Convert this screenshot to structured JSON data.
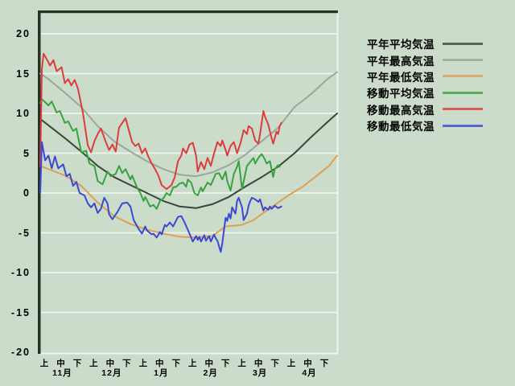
{
  "colors": {
    "background": "#cbdccb",
    "plot_border_dark": "#263226",
    "grid_line": "#f0f4f0",
    "label_text": "#000000"
  },
  "chart_data": {
    "type": "line",
    "grid": "horizontal-only",
    "legend_position": "right",
    "x_axis": {
      "jun_labels": [
        "上",
        "中",
        "下"
      ],
      "months": [
        {
          "label": "11月",
          "days": 30
        },
        {
          "label": "12月",
          "days": 31
        },
        {
          "label": "1月",
          "days": 31
        },
        {
          "label": "2月",
          "days": 28
        },
        {
          "label": "3月",
          "days": 31
        },
        {
          "label": "4月",
          "days": 30
        }
      ]
    },
    "y_axis": {
      "min": -20,
      "max": 20,
      "step": 5,
      "tick_labels": [
        "20",
        "15",
        "10",
        "5",
        "0",
        "-5",
        "-10",
        "-15",
        "-20"
      ],
      "tick_values": [
        20,
        15,
        10,
        5,
        0,
        -5,
        -10,
        -15,
        -20
      ]
    },
    "series": [
      {
        "id": "normal-avg",
        "name": "平年平均気温",
        "color": "#3a463a",
        "points": [
          [
            0,
            9.3
          ],
          [
            5,
            8.5
          ],
          [
            15,
            6.9
          ],
          [
            25,
            5.2
          ],
          [
            35,
            3.4
          ],
          [
            45,
            2.0
          ],
          [
            55,
            1.0
          ],
          [
            65,
            0.0
          ],
          [
            75,
            -1.0
          ],
          [
            85,
            -1.7
          ],
          [
            95,
            -1.9
          ],
          [
            105,
            -1.4
          ],
          [
            115,
            -0.5
          ],
          [
            125,
            0.8
          ],
          [
            135,
            2.0
          ],
          [
            145,
            3.3
          ],
          [
            155,
            5.0
          ],
          [
            165,
            7.0
          ],
          [
            175,
            8.9
          ],
          [
            181,
            10.0
          ]
        ]
      },
      {
        "id": "normal-max",
        "name": "平年最高気温",
        "color": "#9ca69c",
        "points": [
          [
            0,
            15.0
          ],
          [
            5,
            14.3
          ],
          [
            15,
            12.6
          ],
          [
            25,
            10.8
          ],
          [
            35,
            8.4
          ],
          [
            45,
            6.5
          ],
          [
            55,
            5.2
          ],
          [
            65,
            4.0
          ],
          [
            75,
            3.0
          ],
          [
            85,
            2.3
          ],
          [
            95,
            2.1
          ],
          [
            105,
            2.6
          ],
          [
            115,
            3.5
          ],
          [
            125,
            4.8
          ],
          [
            135,
            6.5
          ],
          [
            145,
            8.2
          ],
          [
            155,
            10.8
          ],
          [
            165,
            12.4
          ],
          [
            175,
            14.3
          ],
          [
            181,
            15.2
          ]
        ]
      },
      {
        "id": "normal-min",
        "name": "平年最低気温",
        "color": "#dda055",
        "points": [
          [
            0,
            3.4
          ],
          [
            5,
            3.0
          ],
          [
            15,
            2.2
          ],
          [
            25,
            0.9
          ],
          [
            35,
            -1.2
          ],
          [
            45,
            -2.9
          ],
          [
            55,
            -3.9
          ],
          [
            65,
            -4.6
          ],
          [
            75,
            -5.1
          ],
          [
            85,
            -5.5
          ],
          [
            95,
            -5.6
          ],
          [
            105,
            -5.4
          ],
          [
            113,
            -4.2
          ],
          [
            123,
            -4.0
          ],
          [
            130,
            -3.4
          ],
          [
            138,
            -2.2
          ],
          [
            145,
            -1.2
          ],
          [
            152,
            -0.2
          ],
          [
            160,
            0.8
          ],
          [
            170,
            2.4
          ],
          [
            176,
            3.4
          ],
          [
            181,
            4.7
          ]
        ]
      },
      {
        "id": "moving-avg",
        "name": "移動平均気温",
        "color": "#38a33e",
        "points": [
          [
            0,
            11.3
          ],
          [
            1,
            11.8
          ],
          [
            5,
            11.0
          ],
          [
            7,
            11.5
          ],
          [
            10,
            10.1
          ],
          [
            12,
            10.3
          ],
          [
            15,
            8.8
          ],
          [
            17,
            9.0
          ],
          [
            20,
            7.8
          ],
          [
            22,
            8.1
          ],
          [
            25,
            5.1
          ],
          [
            28,
            5.3
          ],
          [
            30,
            3.7
          ],
          [
            33,
            3.4
          ],
          [
            35,
            1.5
          ],
          [
            38,
            1.1
          ],
          [
            41,
            2.7
          ],
          [
            43,
            2.1
          ],
          [
            46,
            2.4
          ],
          [
            48,
            3.4
          ],
          [
            50,
            2.5
          ],
          [
            52,
            3.0
          ],
          [
            55,
            1.7
          ],
          [
            56,
            2.2
          ],
          [
            59,
            0.7
          ],
          [
            61,
            0.0
          ],
          [
            63,
            -1.0
          ],
          [
            64,
            -0.5
          ],
          [
            67,
            -1.7
          ],
          [
            69,
            -1.5
          ],
          [
            71,
            -2.0
          ],
          [
            73,
            -1.0
          ],
          [
            75,
            -0.7
          ],
          [
            77,
            0.0
          ],
          [
            79,
            -0.3
          ],
          [
            81,
            0.7
          ],
          [
            83,
            0.8
          ],
          [
            85,
            1.2
          ],
          [
            87,
            1.3
          ],
          [
            89,
            0.8
          ],
          [
            90,
            1.7
          ],
          [
            92,
            1.3
          ],
          [
            94,
            0.0
          ],
          [
            96,
            -0.3
          ],
          [
            98,
            0.7
          ],
          [
            99,
            0.2
          ],
          [
            102,
            1.3
          ],
          [
            104,
            1.0
          ],
          [
            107,
            2.4
          ],
          [
            109,
            2.5
          ],
          [
            111,
            1.7
          ],
          [
            113,
            2.7
          ],
          [
            114,
            1.5
          ],
          [
            116,
            0.3
          ],
          [
            118,
            2.4
          ],
          [
            120,
            3.3
          ],
          [
            121,
            4.0
          ],
          [
            123,
            0.5
          ],
          [
            125,
            2.4
          ],
          [
            126,
            3.4
          ],
          [
            128,
            3.9
          ],
          [
            130,
            4.4
          ],
          [
            131,
            3.7
          ],
          [
            133,
            4.4
          ],
          [
            135,
            4.9
          ],
          [
            137,
            4.2
          ],
          [
            138,
            3.7
          ],
          [
            140,
            4.0
          ],
          [
            142,
            2.0
          ],
          [
            143,
            3.0
          ],
          [
            145,
            3.5
          ],
          [
            146,
            3.3
          ]
        ]
      },
      {
        "id": "moving-max",
        "name": "移動最高気温",
        "color": "#dd3c3c",
        "points": [
          [
            0,
            3.3
          ],
          [
            1,
            15.5
          ],
          [
            2,
            17.5
          ],
          [
            4,
            16.8
          ],
          [
            6,
            16.0
          ],
          [
            8,
            16.7
          ],
          [
            10,
            15.3
          ],
          [
            13,
            15.8
          ],
          [
            15,
            13.8
          ],
          [
            17,
            14.3
          ],
          [
            19,
            13.5
          ],
          [
            21,
            14.2
          ],
          [
            23,
            13.1
          ],
          [
            26,
            10.1
          ],
          [
            29,
            6.0
          ],
          [
            31,
            5.1
          ],
          [
            33,
            6.5
          ],
          [
            35,
            7.4
          ],
          [
            37,
            8.1
          ],
          [
            40,
            6.4
          ],
          [
            42,
            5.4
          ],
          [
            44,
            6.1
          ],
          [
            46,
            5.2
          ],
          [
            48,
            8.2
          ],
          [
            52,
            9.4
          ],
          [
            54,
            7.9
          ],
          [
            56,
            6.4
          ],
          [
            58,
            5.9
          ],
          [
            60,
            6.2
          ],
          [
            62,
            5.0
          ],
          [
            64,
            5.6
          ],
          [
            66,
            4.5
          ],
          [
            68,
            3.7
          ],
          [
            70,
            3.0
          ],
          [
            72,
            2.2
          ],
          [
            74,
            1.0
          ],
          [
            77,
            0.5
          ],
          [
            80,
            1.0
          ],
          [
            82,
            2.0
          ],
          [
            84,
            4.0
          ],
          [
            86,
            4.7
          ],
          [
            87,
            5.6
          ],
          [
            89,
            5.0
          ],
          [
            91,
            6.1
          ],
          [
            93,
            6.3
          ],
          [
            95,
            4.7
          ],
          [
            96,
            2.7
          ],
          [
            98,
            3.9
          ],
          [
            100,
            3.0
          ],
          [
            102,
            4.4
          ],
          [
            104,
            3.4
          ],
          [
            106,
            5.0
          ],
          [
            108,
            6.4
          ],
          [
            110,
            5.9
          ],
          [
            111,
            6.6
          ],
          [
            113,
            5.4
          ],
          [
            114,
            4.7
          ],
          [
            116,
            5.9
          ],
          [
            118,
            6.4
          ],
          [
            120,
            5.0
          ],
          [
            122,
            6.2
          ],
          [
            124,
            7.9
          ],
          [
            126,
            7.4
          ],
          [
            127,
            8.4
          ],
          [
            129,
            8.1
          ],
          [
            131,
            6.6
          ],
          [
            133,
            6.2
          ],
          [
            134,
            7.4
          ],
          [
            136,
            10.3
          ],
          [
            137,
            9.6
          ],
          [
            139,
            8.6
          ],
          [
            141,
            6.9
          ],
          [
            142,
            6.2
          ],
          [
            144,
            7.7
          ],
          [
            145,
            7.4
          ],
          [
            146,
            8.4
          ],
          [
            147,
            8.8
          ]
        ]
      },
      {
        "id": "moving-min",
        "name": "移動最低気温",
        "color": "#3c48d2",
        "points": [
          [
            0,
            0.0
          ],
          [
            1,
            6.4
          ],
          [
            3,
            4.1
          ],
          [
            5,
            4.7
          ],
          [
            7,
            3.1
          ],
          [
            9,
            4.6
          ],
          [
            11,
            3.1
          ],
          [
            14,
            3.6
          ],
          [
            16,
            2.1
          ],
          [
            18,
            2.4
          ],
          [
            20,
            0.9
          ],
          [
            22,
            1.4
          ],
          [
            24,
            0.0
          ],
          [
            27,
            -0.3
          ],
          [
            29,
            -1.3
          ],
          [
            31,
            -1.8
          ],
          [
            33,
            -1.3
          ],
          [
            35,
            -2.5
          ],
          [
            37,
            -2.0
          ],
          [
            39,
            -0.6
          ],
          [
            41,
            -1.3
          ],
          [
            42,
            -2.7
          ],
          [
            44,
            -3.3
          ],
          [
            46,
            -2.7
          ],
          [
            47,
            -2.4
          ],
          [
            50,
            -1.3
          ],
          [
            53,
            -1.2
          ],
          [
            55,
            -1.7
          ],
          [
            57,
            -3.4
          ],
          [
            60,
            -4.5
          ],
          [
            62,
            -5.1
          ],
          [
            64,
            -4.2
          ],
          [
            65,
            -4.7
          ],
          [
            68,
            -5.2
          ],
          [
            69,
            -5.1
          ],
          [
            71,
            -5.6
          ],
          [
            73,
            -4.9
          ],
          [
            74,
            -5.2
          ],
          [
            76,
            -4.0
          ],
          [
            77,
            -4.2
          ],
          [
            79,
            -3.7
          ],
          [
            81,
            -4.2
          ],
          [
            84,
            -3.0
          ],
          [
            86,
            -2.9
          ],
          [
            88,
            -3.7
          ],
          [
            91,
            -5.1
          ],
          [
            93,
            -6.1
          ],
          [
            95,
            -5.4
          ],
          [
            96,
            -5.9
          ],
          [
            97,
            -5.5
          ],
          [
            98,
            -6.1
          ],
          [
            100,
            -5.3
          ],
          [
            101,
            -6.0
          ],
          [
            103,
            -5.4
          ],
          [
            104,
            -6.1
          ],
          [
            106,
            -5.2
          ],
          [
            107,
            -5.7
          ],
          [
            108,
            -6.0
          ],
          [
            110,
            -7.4
          ],
          [
            111,
            -6.3
          ],
          [
            112,
            -4.7
          ],
          [
            113,
            -3.1
          ],
          [
            114,
            -3.5
          ],
          [
            115,
            -2.6
          ],
          [
            116,
            -3.2
          ],
          [
            117,
            -1.8
          ],
          [
            119,
            -2.6
          ],
          [
            120,
            -1.0
          ],
          [
            121,
            -0.6
          ],
          [
            122,
            -1.2
          ],
          [
            123,
            -1.8
          ],
          [
            124,
            -3.4
          ],
          [
            126,
            -2.6
          ],
          [
            127,
            -1.6
          ],
          [
            128,
            -1.0
          ],
          [
            129,
            -0.6
          ],
          [
            131,
            -0.8
          ],
          [
            133,
            -1.1
          ],
          [
            134,
            -0.8
          ],
          [
            136,
            -2.2
          ],
          [
            137,
            -1.8
          ],
          [
            139,
            -2.1
          ],
          [
            140,
            -1.7
          ],
          [
            141,
            -2.0
          ],
          [
            143,
            -1.6
          ],
          [
            145,
            -1.9
          ],
          [
            147,
            -1.7
          ]
        ]
      }
    ]
  }
}
